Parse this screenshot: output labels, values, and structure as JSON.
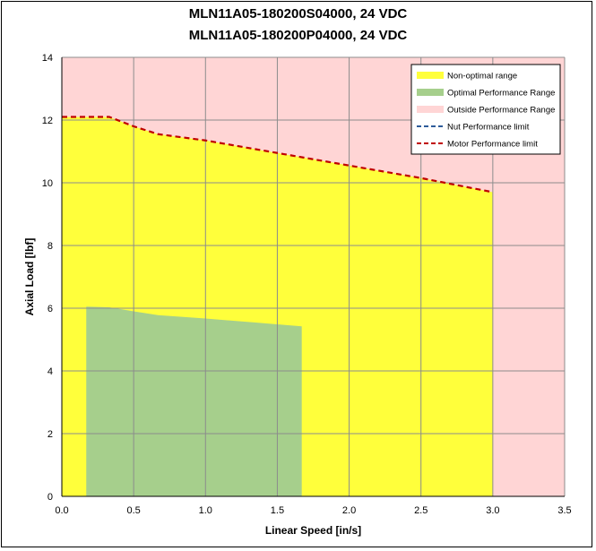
{
  "chart_data": {
    "type": "area",
    "title": "MLN11A05-180200S04000, 24 VDC",
    "subtitle": "MLN11A05-180200P04000, 24 VDC",
    "xlabel": "Linear Speed [in/s]",
    "ylabel": "Axial Load [lbf]",
    "xlim": [
      0,
      3.5
    ],
    "ylim": [
      0,
      14
    ],
    "x_ticks": [
      "0.0",
      "0.5",
      "1.0",
      "1.5",
      "2.0",
      "2.5",
      "3.0",
      "3.5"
    ],
    "y_ticks": [
      "0",
      "2",
      "4",
      "6",
      "8",
      "10",
      "12",
      "14"
    ],
    "grid": true,
    "legend_position": "top-right",
    "background_color": "#FFD5D5",
    "series": [
      {
        "name": "Non-optimal range",
        "kind": "area",
        "color": "#FFFF3B",
        "points": [
          [
            0,
            12.1
          ],
          [
            0.33,
            12.1
          ],
          [
            0.5,
            11.8
          ],
          [
            0.67,
            11.55
          ],
          [
            1.0,
            11.35
          ],
          [
            1.5,
            10.95
          ],
          [
            2.0,
            10.55
          ],
          [
            2.5,
            10.15
          ],
          [
            3.0,
            9.7
          ]
        ]
      },
      {
        "name": "Optimal Performance Range",
        "kind": "area",
        "color": "#A6CF8C",
        "points": [
          [
            0.17,
            6.05
          ],
          [
            0.33,
            6.03
          ],
          [
            0.5,
            5.9
          ],
          [
            0.67,
            5.78
          ],
          [
            1.0,
            5.67
          ],
          [
            1.33,
            5.55
          ],
          [
            1.67,
            5.42
          ]
        ]
      },
      {
        "name": "Outside Performance Range",
        "kind": "area",
        "color": "#FFD5D5",
        "points": []
      },
      {
        "name": "Nut Performance limit",
        "kind": "dashed-line",
        "color": "#2E5B9A",
        "points": []
      },
      {
        "name": "Motor Performance limit",
        "kind": "dashed-line",
        "color": "#C00000",
        "points": [
          [
            0,
            12.1
          ],
          [
            0.33,
            12.1
          ],
          [
            0.5,
            11.8
          ],
          [
            0.67,
            11.55
          ],
          [
            1.0,
            11.35
          ],
          [
            1.5,
            10.95
          ],
          [
            2.0,
            10.55
          ],
          [
            2.5,
            10.15
          ],
          [
            3.0,
            9.7
          ]
        ]
      }
    ]
  }
}
